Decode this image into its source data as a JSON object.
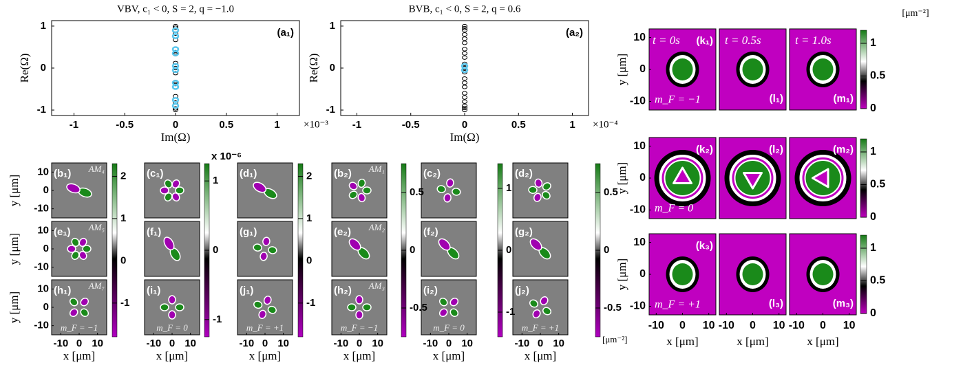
{
  "chart_data": [
    {
      "type": "scatter",
      "title": "VBV, c₁ < 0,  S = 2,  q = −1.0",
      "xlabel": "Im(Ω)",
      "ylabel": "Re(Ω)",
      "x_multiplier": "×10⁻³",
      "panel_label": "(a₁)",
      "xlim": [
        -1.22,
        1.22
      ],
      "ylim": [
        -1.13,
        1.13
      ],
      "xticks": [
        -1,
        -0.5,
        0,
        0.5,
        1
      ],
      "yticks": [
        -1,
        0,
        1
      ],
      "series": [
        {
          "color": "#000000",
          "x": [
            0,
            0,
            0,
            0,
            0,
            0,
            0,
            0,
            0,
            0,
            0,
            0,
            0,
            0,
            0,
            0,
            0,
            0,
            0,
            0,
            0,
            0,
            0
          ],
          "values": [
            -1,
            -0.96,
            -0.9,
            -0.82,
            -0.76,
            -0.67,
            -0.45,
            -0.38,
            -0.33,
            -0.12,
            -0.05,
            0,
            0.05,
            0.12,
            0.33,
            0.38,
            0.45,
            0.67,
            0.76,
            0.82,
            0.9,
            0.96,
            1
          ]
        },
        {
          "color": "#5bc8ef",
          "x": [
            0,
            0,
            0,
            0,
            0,
            0,
            0,
            0,
            0,
            0
          ],
          "values": [
            -0.9,
            -0.76,
            -0.45,
            -0.35,
            -0.05,
            0.05,
            0.35,
            0.45,
            0.76,
            0.9
          ]
        }
      ]
    },
    {
      "type": "scatter",
      "title": "BVB, c₁ < 0,  S = 2,  q = 0.6",
      "xlabel": "Im(Ω)",
      "ylabel": "Re(Ω)",
      "x_multiplier": "×10⁻⁴",
      "panel_label": "(a₂)",
      "xlim": [
        -1.15,
        1.15
      ],
      "ylim": [
        -1.13,
        1.13
      ],
      "xticks": [
        -1,
        -0.5,
        0,
        0.5,
        1
      ],
      "yticks": [
        -1,
        0,
        1
      ],
      "series": [
        {
          "color": "#000000",
          "x": [
            0,
            0,
            0,
            0,
            0,
            0,
            0,
            0,
            0,
            0,
            0,
            0,
            0,
            0,
            0,
            0,
            0,
            0,
            0,
            0,
            0
          ],
          "values": [
            -1,
            -0.95,
            -0.9,
            -0.8,
            -0.7,
            -0.6,
            -0.45,
            -0.35,
            -0.25,
            -0.1,
            0,
            0.1,
            0.25,
            0.35,
            0.45,
            0.6,
            0.7,
            0.8,
            0.9,
            0.95,
            1
          ]
        },
        {
          "color": "#5bc8ef",
          "x": [
            0,
            0
          ],
          "values": [
            -0.05,
            0.05
          ]
        }
      ]
    }
  ],
  "maps_left": {
    "xlabel": "x [μm]",
    "ylabel": "y [μm]",
    "xticks": [
      -10,
      0,
      10
    ],
    "yticks": [
      10,
      0,
      -10
    ],
    "extent": [
      -15,
      15
    ],
    "rows": [
      [
        {
          "label": "(b₁)",
          "mode": "AM₄"
        },
        {
          "label": "(c₁)"
        },
        {
          "label": "(d₁)"
        },
        {
          "label": "(b₂)",
          "mode": "AM₁"
        },
        {
          "label": "(c₂)"
        },
        {
          "label": "(d₂)"
        }
      ],
      [
        {
          "label": "(e₁)",
          "mode": "AM₅"
        },
        {
          "label": "(f₁)"
        },
        {
          "label": "(g₁)"
        },
        {
          "label": "(e₂)",
          "mode": "AM₂"
        },
        {
          "label": "(f₂)"
        },
        {
          "label": "(g₂)"
        }
      ],
      [
        {
          "label": "(h₁)",
          "mode": "AM₇",
          "mf": "m_F = −1"
        },
        {
          "label": "(i₁)",
          "mf": "m_F = 0"
        },
        {
          "label": "(j₁)",
          "mf": "m_F = +1"
        },
        {
          "label": "(h₂)",
          "mode": "AM₃",
          "mf": "m_F = −1"
        },
        {
          "label": "(i₂)",
          "mf": "m_F = 0"
        },
        {
          "label": "(j₂)",
          "mf": "m_F = +1"
        }
      ]
    ],
    "colorbars": [
      {
        "ticks": [
          2,
          1,
          0,
          -1
        ],
        "lim": [
          -1.8,
          2.3
        ]
      },
      {
        "ticks": [
          1,
          0,
          -1
        ],
        "lim": [
          -1.25,
          1.25
        ],
        "exponent": "x 10⁻⁶"
      },
      {
        "ticks": [
          2,
          1,
          0,
          -1
        ],
        "lim": [
          -1.8,
          2.3
        ]
      },
      {
        "ticks": [
          0.5,
          0,
          -0.5
        ],
        "lim": [
          -0.75,
          0.75
        ]
      },
      {
        "ticks": [
          1,
          0,
          -1
        ],
        "lim": [
          -1.4,
          1.4
        ]
      },
      {
        "ticks": [
          0.5,
          0,
          -0.5
        ],
        "lim": [
          -0.75,
          0.75
        ],
        "unit": "[μm⁻²]"
      }
    ]
  },
  "maps_right": {
    "xlabel": "x [μm]",
    "ylabel": "y [μm]",
    "xticks": [
      -10,
      0,
      10
    ],
    "yticks": [
      10,
      0,
      -10
    ],
    "extent": [
      -12.7,
      12.7
    ],
    "times": [
      "t = 0s",
      "t = 0.5s",
      "t = 1.0s"
    ],
    "unit": "[μm⁻²]",
    "colorbar": {
      "ticks": [
        1,
        0.5,
        0
      ],
      "lim": [
        0,
        1.2
      ]
    },
    "rows": [
      {
        "labels": [
          "(k₁)",
          "(l₁)",
          "(m₁)"
        ],
        "mf": "m_F = −1"
      },
      {
        "labels": [
          "(k₂)",
          "(l₂)",
          "(m₂)"
        ],
        "mf": "m_F = 0"
      },
      {
        "labels": [
          "(k₃)",
          "(l₃)",
          "(m₃)"
        ],
        "mf": "m_F = +1"
      }
    ]
  }
}
